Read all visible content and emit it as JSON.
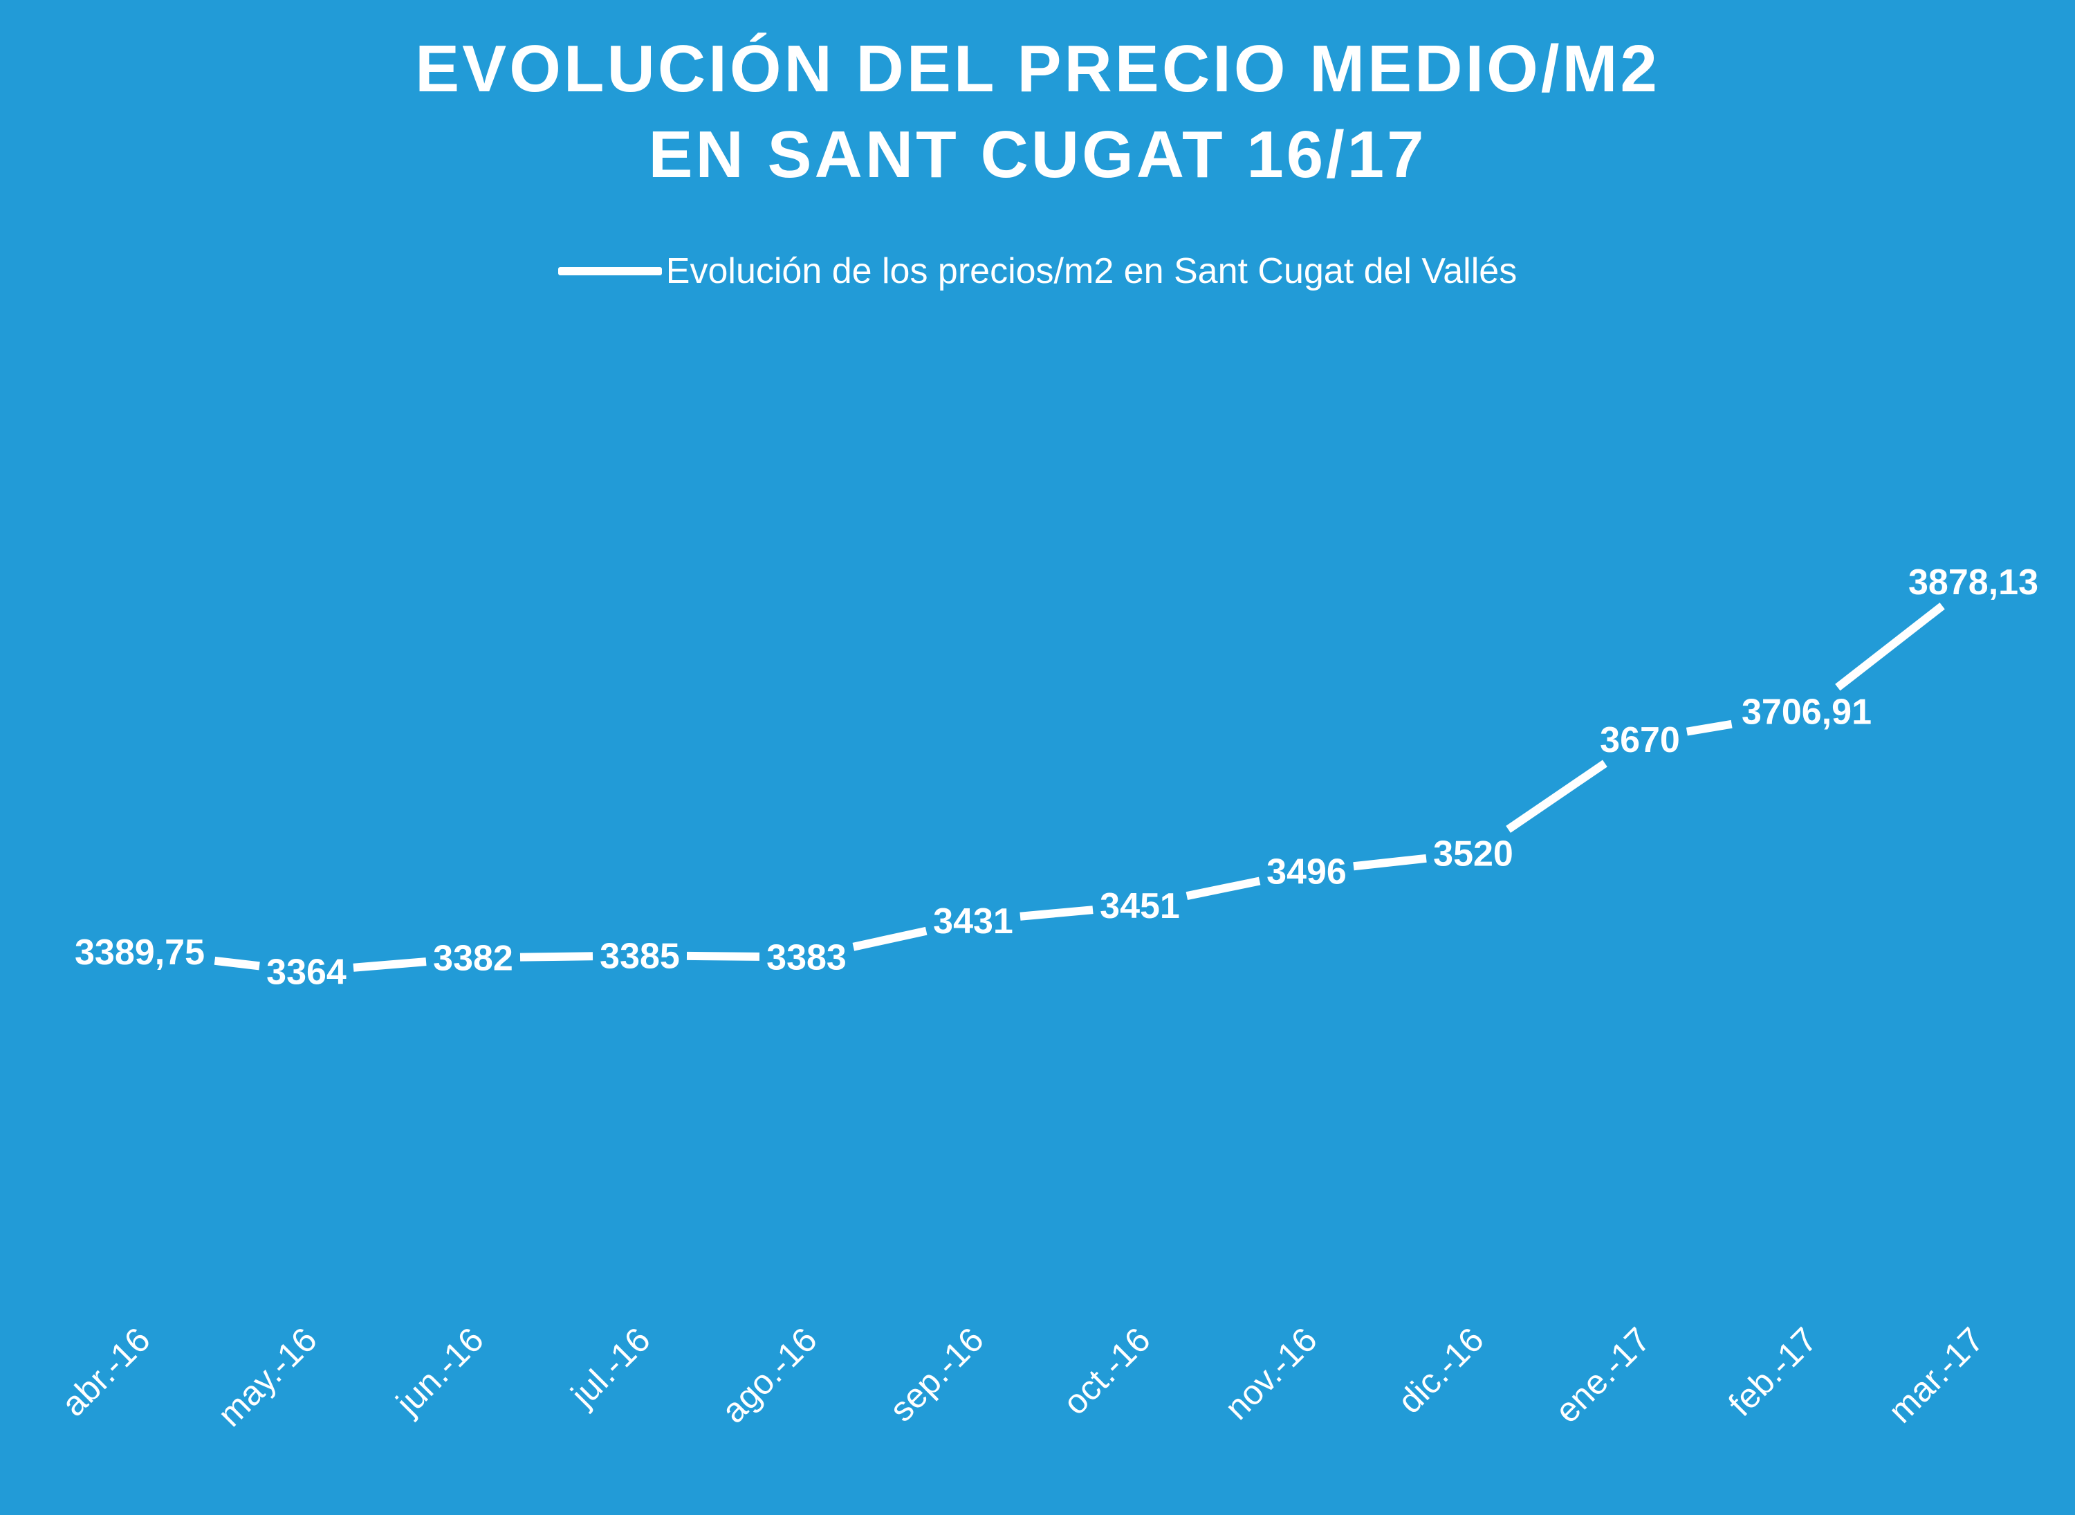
{
  "chart_data": {
    "type": "line",
    "title_line1": "EVOLUCIÓN DEL PRECIO MEDIO/M2",
    "title_line2": "EN SANT CUGAT 16/17",
    "xlabel": "",
    "ylabel": "",
    "categories": [
      "abr.-16",
      "may.-16",
      "jun.-16",
      "jul.-16",
      "ago.-16",
      "sep.-16",
      "oct.-16",
      "nov.-16",
      "dic.-16",
      "ene.-17",
      "feb.-17",
      "mar.-17"
    ],
    "series": [
      {
        "name": "Evolución de los precios/m2 en Sant Cugat del Vallés",
        "values": [
          3389.75,
          3364,
          3382,
          3385,
          3383,
          3431,
          3451,
          3496,
          3520,
          3670,
          3706.91,
          3878.13
        ],
        "value_labels": [
          "3389,75",
          "3364",
          "3382",
          "3385",
          "3383",
          "3431",
          "3451",
          "3496",
          "3520",
          "3670",
          "3706,91",
          "3878,13"
        ]
      }
    ],
    "ylim": [
      2950,
      3910
    ],
    "grid": false,
    "drop_lines": true,
    "legend_position": "top-center",
    "colors": {
      "background": "#229bd7",
      "line": "#ffffff",
      "text": "#ffffff"
    }
  }
}
